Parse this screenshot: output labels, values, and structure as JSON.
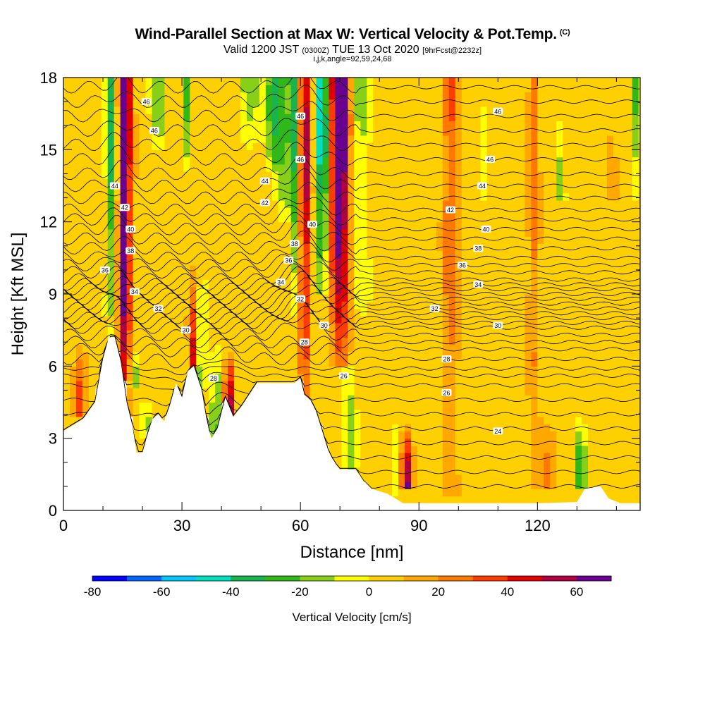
{
  "header": {
    "title": "Wind-Parallel Section at Max W: Vertical Velocity & Pot.Temp.",
    "title_unit": "(C)",
    "subtitle_valid": "Valid 1200 JST",
    "subtitle_utc": "(0300Z)",
    "subtitle_date": "TUE 13 Oct 2020",
    "subtitle_fcst": "[9hrFcst@2232z]",
    "subtitle_line2": "i,j,k,angle=92,59,24,68"
  },
  "chart_data": {
    "type": "heatmap",
    "xlabel": "Distance [nm]",
    "ylabel": "Height [Kft MSL]",
    "xlim": [
      0,
      146
    ],
    "ylim": [
      0,
      18
    ],
    "x_ticks": [
      0,
      30,
      60,
      90,
      120
    ],
    "y_ticks": [
      0,
      3,
      6,
      9,
      12,
      15,
      18
    ],
    "colorbar": {
      "label": "Vertical Velocity [cm/s]",
      "range": [
        -80,
        70
      ],
      "step": 10,
      "tick_values": [
        -80,
        -60,
        -40,
        -20,
        0,
        20,
        40,
        60
      ],
      "colors": [
        "#0000ff",
        "#0066ff",
        "#00c8ff",
        "#00e0c0",
        "#18b450",
        "#30b818",
        "#88d018",
        "#ffff00",
        "#ffd000",
        "#ffa800",
        "#ff7800",
        "#ff3c00",
        "#e00000",
        "#b00040",
        "#6a0090"
      ]
    },
    "terrain_kft": [
      [
        0,
        3.3
      ],
      [
        2,
        3.5
      ],
      [
        5,
        3.8
      ],
      [
        8,
        4.5
      ],
      [
        10,
        6.3
      ],
      [
        11.5,
        7.2
      ],
      [
        13,
        7.2
      ],
      [
        14.5,
        6.2
      ],
      [
        16,
        4.5
      ],
      [
        17.5,
        3.5
      ],
      [
        18.5,
        2.4
      ],
      [
        20,
        2.4
      ],
      [
        21,
        3.0
      ],
      [
        22.5,
        3.8
      ],
      [
        24,
        4.0
      ],
      [
        25.5,
        3.7
      ],
      [
        27,
        4.4
      ],
      [
        28.5,
        5.3
      ],
      [
        30,
        4.7
      ],
      [
        31.5,
        5.8
      ],
      [
        33,
        6.0
      ],
      [
        35,
        5.0
      ],
      [
        36.5,
        3.5
      ],
      [
        37.5,
        3.0
      ],
      [
        39,
        3.4
      ],
      [
        41,
        4.7
      ],
      [
        43,
        3.9
      ],
      [
        45,
        4.3
      ],
      [
        47,
        4.8
      ],
      [
        49,
        5.3
      ],
      [
        52,
        5.3
      ],
      [
        56,
        5.3
      ],
      [
        58.5,
        5.3
      ],
      [
        60,
        5.5
      ],
      [
        61,
        4.8
      ],
      [
        62.5,
        4.6
      ],
      [
        64,
        4.1
      ],
      [
        65.5,
        3.3
      ],
      [
        67,
        2.5
      ],
      [
        68.5,
        2.0
      ],
      [
        70,
        1.7
      ],
      [
        72,
        1.7
      ],
      [
        74,
        1.7
      ],
      [
        76,
        1.2
      ],
      [
        78,
        0.9
      ],
      [
        80,
        0.8
      ],
      [
        82,
        0.7
      ],
      [
        84,
        0.5
      ],
      [
        86,
        0.3
      ],
      [
        88,
        0.3
      ],
      [
        90,
        0.3
      ],
      [
        100,
        0.3
      ],
      [
        110,
        0.3
      ],
      [
        120,
        0.3
      ],
      [
        130,
        0.35
      ],
      [
        132,
        0.9
      ],
      [
        136,
        1.0
      ],
      [
        138,
        0.5
      ],
      [
        141,
        0.3
      ],
      [
        146,
        0.3
      ]
    ],
    "theta_contour_labels": [
      {
        "value": "46",
        "x": 21,
        "y": 17.0
      },
      {
        "value": "46",
        "x": 23,
        "y": 15.8
      },
      {
        "value": "44",
        "x": 13,
        "y": 13.5
      },
      {
        "value": "42",
        "x": 15.5,
        "y": 12.6
      },
      {
        "value": "40",
        "x": 17,
        "y": 11.7
      },
      {
        "value": "38",
        "x": 17,
        "y": 10.8
      },
      {
        "value": "36",
        "x": 10.5,
        "y": 10.0
      },
      {
        "value": "34",
        "x": 18,
        "y": 9.1
      },
      {
        "value": "32",
        "x": 24,
        "y": 8.4
      },
      {
        "value": "30",
        "x": 31,
        "y": 7.5
      },
      {
        "value": "28",
        "x": 38,
        "y": 5.5
      },
      {
        "value": "46",
        "x": 60,
        "y": 16.4
      },
      {
        "value": "46",
        "x": 60,
        "y": 14.6
      },
      {
        "value": "44",
        "x": 51,
        "y": 13.7
      },
      {
        "value": "42",
        "x": 51,
        "y": 12.8
      },
      {
        "value": "40",
        "x": 63,
        "y": 11.9
      },
      {
        "value": "38",
        "x": 58.5,
        "y": 11.1
      },
      {
        "value": "36",
        "x": 57,
        "y": 10.4
      },
      {
        "value": "34",
        "x": 55,
        "y": 9.5
      },
      {
        "value": "32",
        "x": 60,
        "y": 8.8
      },
      {
        "value": "30",
        "x": 66,
        "y": 7.7
      },
      {
        "value": "28",
        "x": 61,
        "y": 7.0
      },
      {
        "value": "26",
        "x": 71,
        "y": 5.6
      },
      {
        "value": "46",
        "x": 110,
        "y": 16.6
      },
      {
        "value": "46",
        "x": 108,
        "y": 14.6
      },
      {
        "value": "44",
        "x": 106,
        "y": 13.5
      },
      {
        "value": "42",
        "x": 98,
        "y": 12.5
      },
      {
        "value": "40",
        "x": 107,
        "y": 11.7
      },
      {
        "value": "38",
        "x": 105,
        "y": 10.9
      },
      {
        "value": "36",
        "x": 101,
        "y": 10.2
      },
      {
        "value": "34",
        "x": 105,
        "y": 9.4
      },
      {
        "value": "32",
        "x": 94,
        "y": 8.4
      },
      {
        "value": "30",
        "x": 110,
        "y": 7.7
      },
      {
        "value": "28",
        "x": 97,
        "y": 6.3
      },
      {
        "value": "26",
        "x": 97,
        "y": 4.9
      },
      {
        "value": "24",
        "x": 110,
        "y": 3.3
      }
    ]
  }
}
